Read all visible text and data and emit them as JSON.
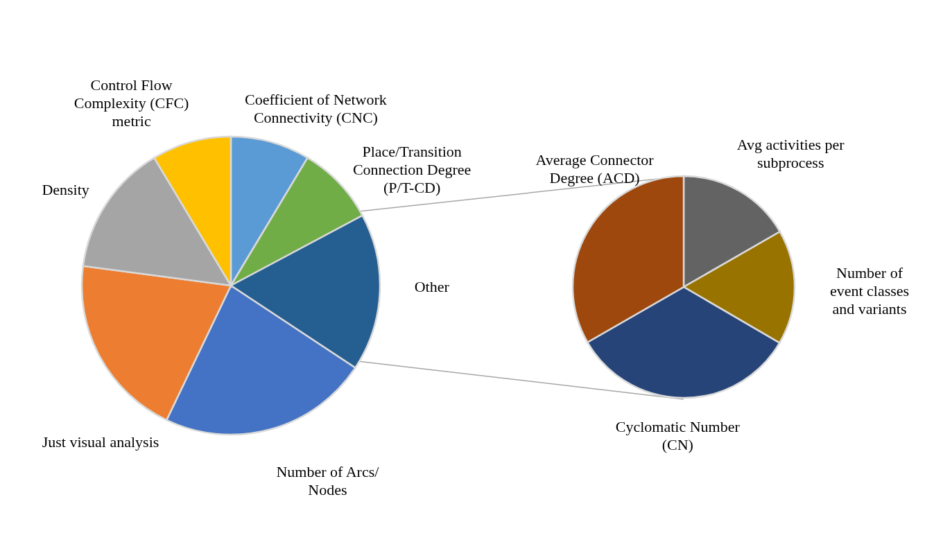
{
  "chart_data": [
    {
      "type": "pie",
      "categories": [
        "Coefficient of Network Connectivity (CNC)",
        "Place/Transition Connection Degree (P/T-CD)",
        "Other",
        "Number of Arcs/ Nodes",
        "Just visual analysis",
        "Density",
        "Control Flow Complexity (CFC) metric"
      ],
      "values": [
        8.6,
        8.6,
        17.1,
        22.8,
        20,
        14.3,
        8.6
      ],
      "colors": [
        "#5b9bd5",
        "#70ad47",
        "#255e91",
        "#4472c4",
        "#ed7d31",
        "#a5a5a5",
        "#ffc000"
      ]
    },
    {
      "type": "pie",
      "categories": [
        "Avg activities per subprocess",
        "Number of event classes and variants",
        "Cyclomatic Number (CN)",
        "Average Connector Degree (ACD)"
      ],
      "values": [
        16.7,
        16.7,
        33.3,
        33.3
      ],
      "colors": [
        "#636363",
        "#997300",
        "#264478",
        "#9e480e"
      ]
    }
  ]
}
